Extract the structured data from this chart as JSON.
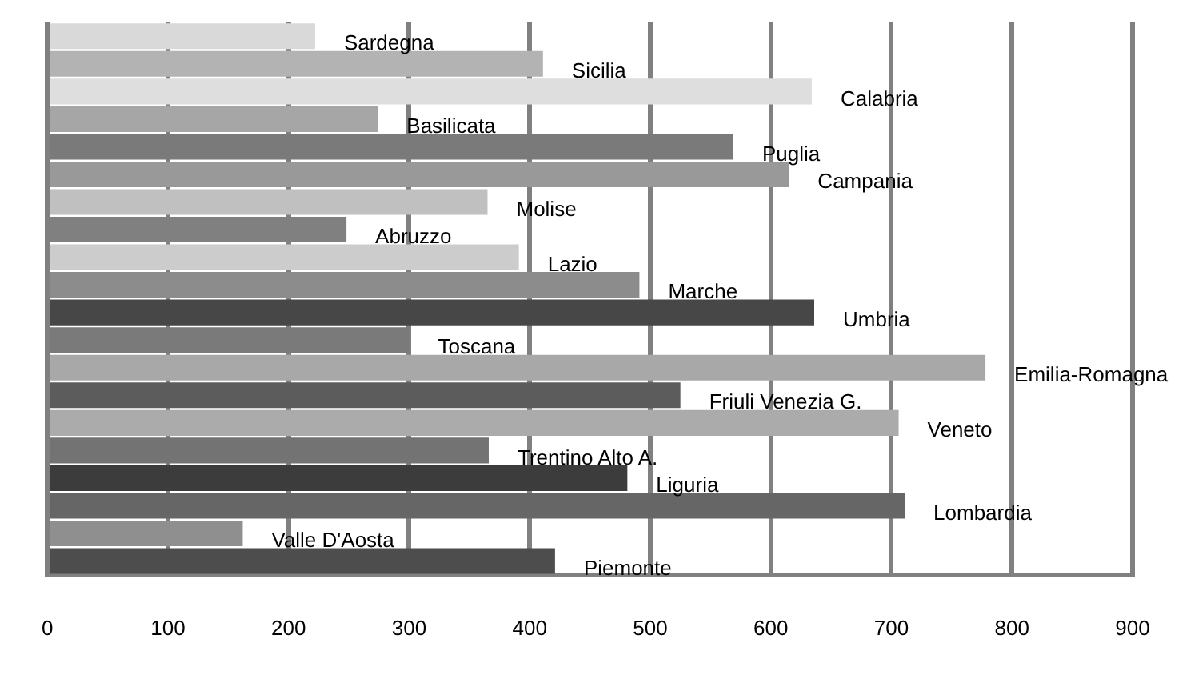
{
  "chart_data": {
    "type": "bar",
    "orientation": "horizontal",
    "categories": [
      "Sardegna",
      "Sicilia",
      "Calabria",
      "Basilicata",
      "Puglia",
      "Campania",
      "Molise",
      "Abruzzo",
      "Lazio",
      "Marche",
      "Umbria",
      "Toscana",
      "Emilia-Romagna",
      "Friuli Venezia G.",
      "Veneto",
      "Trentino Alto A.",
      "Liguria",
      "Lombardia",
      "Valle D'Aosta",
      "Piemonte"
    ],
    "values": [
      222,
      411,
      634,
      274,
      569,
      615,
      365,
      248,
      391,
      491,
      636,
      300,
      778,
      525,
      706,
      366,
      481,
      711,
      162,
      421
    ],
    "colors": [
      "#d9d9d9",
      "#b3b3b3",
      "#dedede",
      "#a6a6a6",
      "#7a7a7a",
      "#999999",
      "#c0c0c0",
      "#808080",
      "#cccccc",
      "#8c8c8c",
      "#474747",
      "#7a7a7a",
      "#a8a8a8",
      "#5c5c5c",
      "#ababab",
      "#737373",
      "#3c3c3c",
      "#666666",
      "#8f8f8f",
      "#4d4d4d"
    ],
    "xlim": [
      0,
      900
    ],
    "xticks": [
      0,
      100,
      200,
      300,
      400,
      500,
      600,
      700,
      800,
      900
    ],
    "grid": "x",
    "legend": false,
    "tick_labels": "x"
  }
}
